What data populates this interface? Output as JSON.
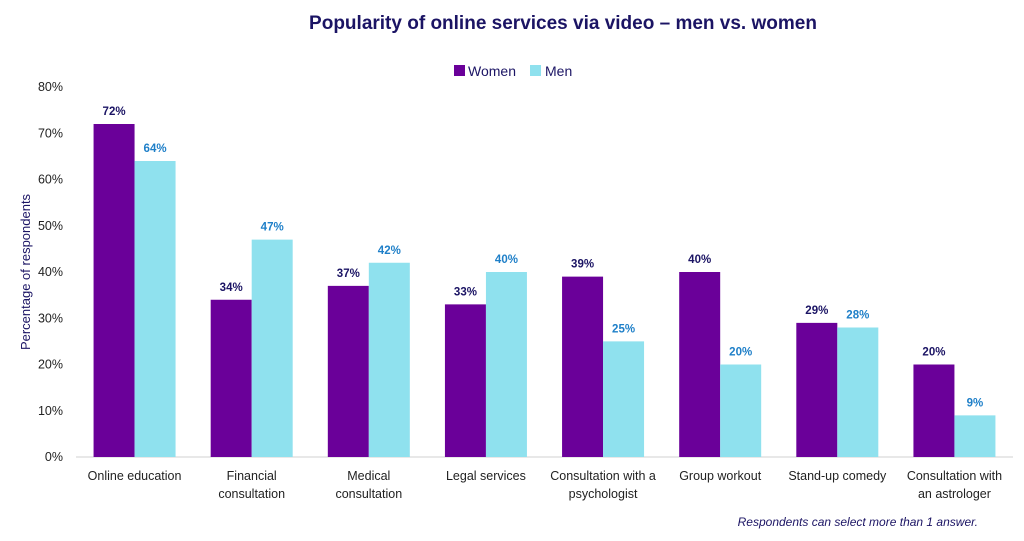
{
  "colors": {
    "women": "#6a0099",
    "men": "#8fe1ee",
    "women_label": "#1b1464",
    "men_label": "#1e7fc8"
  },
  "note": "Respondents can select more than 1 answer.",
  "chart_data": {
    "type": "bar",
    "title": "Popularity of online services via video – men vs. women",
    "xlabel": "",
    "ylabel": "Percentage of respondents",
    "ylim": [
      0,
      80
    ],
    "yticks": [
      "0%",
      "10%",
      "20%",
      "30%",
      "40%",
      "50%",
      "60%",
      "70%",
      "80%"
    ],
    "grid": false,
    "legend_position": "top-center",
    "categories": [
      [
        "Online education"
      ],
      [
        "Financial",
        "consultation"
      ],
      [
        "Medical",
        "consultation"
      ],
      [
        "Legal services"
      ],
      [
        "Consultation with a",
        "psychologist"
      ],
      [
        "Group workout"
      ],
      [
        "Stand-up comedy"
      ],
      [
        "Consultation with",
        "an astrologer"
      ]
    ],
    "series": [
      {
        "name": "Women",
        "values": [
          72,
          34,
          37,
          33,
          39,
          40,
          29,
          20
        ],
        "labels": [
          "72%",
          "34%",
          "37%",
          "33%",
          "39%",
          "40%",
          "29%",
          "20%"
        ]
      },
      {
        "name": "Men",
        "values": [
          64,
          47,
          42,
          40,
          25,
          20,
          28,
          9
        ],
        "labels": [
          "64%",
          "47%",
          "42%",
          "40%",
          "25%",
          "20%",
          "28%",
          "9%"
        ]
      }
    ]
  }
}
